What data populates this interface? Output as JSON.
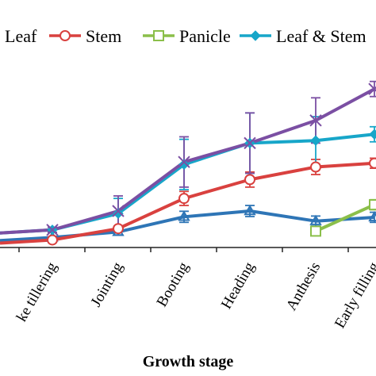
{
  "chart_data": {
    "type": "line",
    "xlabel": "Growth stage",
    "ylabel": "",
    "categories": [
      "Late tillering",
      "Jointing",
      "Booting",
      "Heading",
      "Anthesis",
      "Early filling"
    ],
    "visible_tick_labels": [
      "ke tillering",
      "Jointing",
      "Booting",
      "Heading",
      "Anthesis",
      "Early filling"
    ],
    "series": [
      {
        "name": "Leaf",
        "color": "#2e75b6",
        "marker": "triangle",
        "values": [
          0.4,
          0.62,
          1.22,
          1.45,
          1.05,
          1.2
        ],
        "errors": [
          0.0,
          0.12,
          0.22,
          0.22,
          0.2,
          0.2
        ]
      },
      {
        "name": "Stem",
        "color": "#d9413f",
        "marker": "circle",
        "values": [
          0.3,
          0.75,
          1.95,
          2.7,
          3.2,
          3.35
        ],
        "errors": [
          0.0,
          0.1,
          0.28,
          0.3,
          0.3,
          0.2
        ]
      },
      {
        "name": "Panicle",
        "color": "#8bbf4a",
        "marker": "square",
        "values": [
          null,
          null,
          null,
          null,
          0.65,
          1.7
        ],
        "errors": [
          null,
          null,
          null,
          null,
          0.15,
          0.2
        ]
      },
      {
        "name": "Leaf & Stem",
        "color": "#17a6c9",
        "marker": "diamond",
        "values": [
          0.7,
          1.35,
          3.3,
          4.15,
          4.25,
          4.5
        ],
        "errors": [
          0.1,
          0.6,
          1.0,
          1.2,
          0.95,
          0.3
        ]
      },
      {
        "name": "",
        "color": "#7b4fa3",
        "marker": "x",
        "values": [
          0.7,
          1.45,
          3.4,
          4.15,
          5.05,
          6.3
        ],
        "errors": [
          0.1,
          0.6,
          1.0,
          1.2,
          0.9,
          0.3
        ]
      }
    ],
    "ylim": [
      0,
      7
    ],
    "legend_position": "top",
    "grid": false
  }
}
